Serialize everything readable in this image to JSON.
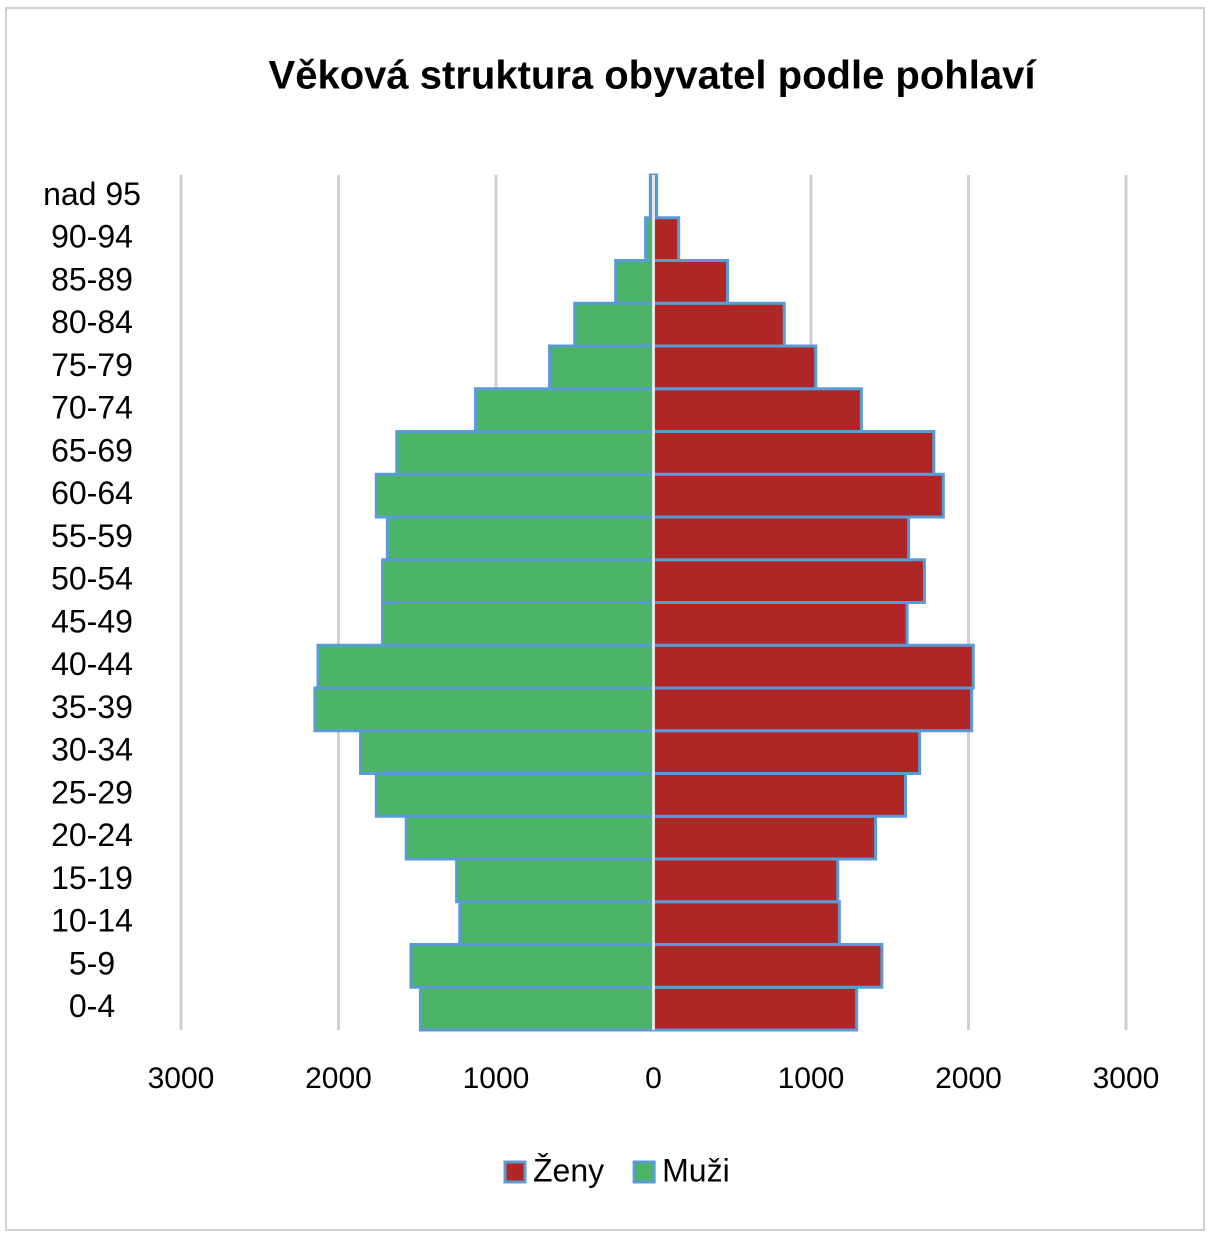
{
  "chart_data": {
    "type": "pyramid",
    "title": "Věková struktura obyvatel podle pohlaví",
    "categories": [
      "0-4",
      "5-9",
      "10-14",
      "15-19",
      "20-24",
      "25-29",
      "30-34",
      "35-39",
      "40-44",
      "45-49",
      "50-54",
      "55-59",
      "60-64",
      "65-69",
      "70-74",
      "75-79",
      "80-84",
      "85-89",
      "90-94",
      "nad 95"
    ],
    "series": [
      {
        "name": "Ženy",
        "color": "#b02626",
        "values": [
          1290,
          1450,
          1180,
          1170,
          1410,
          1600,
          1690,
          2020,
          2030,
          1610,
          1720,
          1620,
          1840,
          1780,
          1320,
          1030,
          830,
          470,
          160,
          20
        ]
      },
      {
        "name": "Muži",
        "color": "#4bb466",
        "values": [
          -1480,
          -1540,
          -1230,
          -1250,
          -1570,
          -1760,
          -1860,
          -2150,
          -2130,
          -1720,
          -1720,
          -1690,
          -1760,
          -1630,
          -1130,
          -660,
          -500,
          -240,
          -50,
          -20
        ]
      }
    ],
    "bar_edge_color": "#5b9bd5",
    "xlim": [
      -3000,
      3000
    ],
    "xticks": [
      {
        "value": -3000,
        "label": "3000"
      },
      {
        "value": -2000,
        "label": "2000"
      },
      {
        "value": -1000,
        "label": "1000"
      },
      0,
      1000,
      2000,
      3000
    ],
    "grid": true,
    "legend": "bottom"
  }
}
